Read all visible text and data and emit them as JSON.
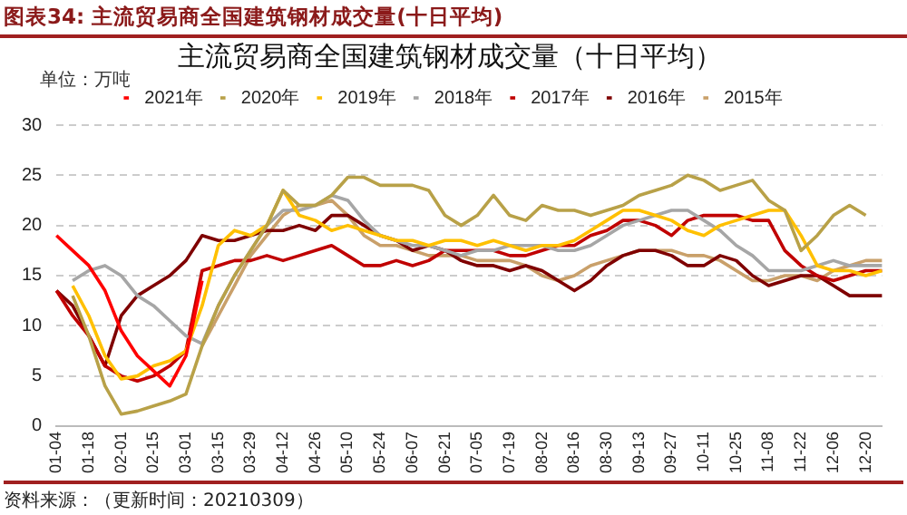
{
  "chart_data": {
    "type": "line",
    "title": "图表34: 主流贸易商全国建筑钢材成交量(十日平均)",
    "subtitle": "主流贸易商全国建筑钢材成交量（十日平均）",
    "ylabel": "单位：万吨",
    "annotations": [
      "资料来源：（更新时间：20210309）"
    ],
    "categories": [
      "01-04",
      null,
      "01-18",
      null,
      "02-01",
      null,
      "02-15",
      null,
      "03-01",
      null,
      "03-15",
      null,
      "03-29",
      null,
      "04-12",
      null,
      "04-26",
      null,
      "05-10",
      null,
      "05-24",
      null,
      "06-07",
      null,
      "06-21",
      null,
      "07-05",
      null,
      "07-19",
      null,
      "08-02",
      null,
      "08-16",
      null,
      "08-30",
      null,
      "09-13",
      null,
      "09-27",
      null,
      "10-11",
      null,
      "10-25",
      null,
      "11-08",
      null,
      "11-22",
      null,
      "12-06",
      null,
      "12-20",
      null
    ],
    "series": [
      {
        "name": "2021年",
        "color": "#ff0000",
        "values": [
          19,
          17.5,
          16,
          13.5,
          9.5,
          7,
          5.5,
          4,
          7,
          14.5,
          null,
          null,
          null,
          null,
          null,
          null,
          null,
          null,
          null,
          null,
          null,
          null,
          null,
          null,
          null,
          null,
          null,
          null,
          null,
          null,
          null,
          null,
          null,
          null,
          null,
          null,
          null,
          null,
          null,
          null,
          null,
          null,
          null,
          null,
          null,
          null,
          null,
          null,
          null,
          null,
          null,
          null
        ]
      },
      {
        "name": "2020年",
        "color": "#b8a148",
        "values": [
          null,
          13,
          9,
          4,
          1.2,
          1.5,
          2,
          2.5,
          3.2,
          8,
          12,
          15,
          17.5,
          20,
          23.5,
          22,
          22,
          23,
          24.8,
          24.8,
          24,
          24,
          24,
          23.5,
          21,
          20,
          21,
          23,
          21,
          20.5,
          22,
          21.5,
          21.5,
          21,
          21.5,
          22,
          23,
          23.5,
          24,
          25,
          24.5,
          23.5,
          24,
          24.5,
          22.5,
          21.5,
          17.5,
          19,
          21,
          22,
          21,
          null
        ]
      },
      {
        "name": "2019年",
        "color": "#ffc000",
        "values": [
          null,
          14,
          11,
          7,
          4.7,
          5,
          6,
          6.5,
          7.5,
          12,
          18,
          19.5,
          19,
          20,
          23.5,
          21,
          20.5,
          19.5,
          20,
          19.5,
          19,
          18.5,
          18.5,
          18,
          18.5,
          18.5,
          18,
          18.5,
          18,
          17.5,
          18,
          18,
          18.5,
          19.5,
          20.5,
          21.5,
          21.5,
          21,
          20.5,
          19.5,
          19,
          20,
          20.5,
          21,
          21.5,
          21.5,
          19,
          16,
          15.5,
          15.5,
          15,
          15.5
        ]
      },
      {
        "name": "2018年",
        "color": "#a6a6a6",
        "values": [
          null,
          14.5,
          15.5,
          16,
          15,
          13,
          12,
          10.5,
          9,
          8.2,
          12,
          15,
          17.5,
          20,
          21.5,
          21.5,
          22,
          23,
          22.5,
          20.5,
          19,
          18.5,
          18,
          18,
          17.5,
          17,
          17.5,
          17.5,
          18,
          18,
          18,
          17.5,
          17.5,
          18,
          19,
          20,
          20.5,
          21,
          21.5,
          21.5,
          20.5,
          19.5,
          18,
          17,
          15.5,
          15.5,
          15.5,
          16,
          16.5,
          16,
          16,
          16
        ]
      },
      {
        "name": "2017年",
        "color": "#c00000",
        "values": [
          13.5,
          11,
          9,
          6,
          5,
          4.5,
          5,
          6,
          7.5,
          15.5,
          16,
          16.5,
          16.5,
          17,
          16.5,
          17,
          17.5,
          18,
          17,
          16,
          16,
          16.5,
          16,
          16.5,
          17.5,
          17.5,
          17.5,
          17.5,
          17,
          17,
          17.5,
          18,
          18,
          19,
          19.5,
          20.5,
          20.5,
          20,
          19,
          20.5,
          21,
          21,
          21,
          20.5,
          20.5,
          17.5,
          16,
          15,
          14.5,
          15,
          15.5,
          15.5
        ]
      },
      {
        "name": "2016年",
        "color": "#7f0000",
        "values": [
          13.5,
          12,
          9,
          6,
          11,
          13,
          14,
          15,
          16.5,
          19,
          18.5,
          18.5,
          19,
          19.5,
          19.5,
          20,
          19.5,
          21,
          21,
          20,
          19,
          18.5,
          17.5,
          18,
          17.5,
          16.5,
          16,
          16,
          15.5,
          16,
          15.5,
          14.5,
          13.5,
          14.5,
          16,
          17,
          17.5,
          17.5,
          17,
          16,
          16,
          17,
          16.5,
          15,
          14,
          14.5,
          15,
          15,
          14,
          13,
          13,
          13
        ]
      },
      {
        "name": "2015年",
        "color": "#c9a06a",
        "values": [
          null,
          null,
          null,
          null,
          null,
          null,
          null,
          null,
          null,
          8,
          11,
          14,
          17,
          19,
          21,
          22,
          22,
          22.5,
          21,
          19,
          18,
          18,
          17.5,
          17,
          17,
          17,
          16.5,
          16.5,
          16.5,
          16,
          15,
          14.5,
          15,
          16,
          16.5,
          17,
          17.5,
          17.5,
          17.5,
          17,
          17,
          16.5,
          15.5,
          14.5,
          14.5,
          15,
          15,
          14.5,
          15.5,
          16,
          16.5,
          16.5
        ]
      }
    ],
    "ylim": [
      0,
      30
    ],
    "yticks": [
      0,
      5,
      10,
      15,
      20,
      25,
      30
    ],
    "grid": "y",
    "legend": "top",
    "marker": "none",
    "line_style": "solid"
  }
}
